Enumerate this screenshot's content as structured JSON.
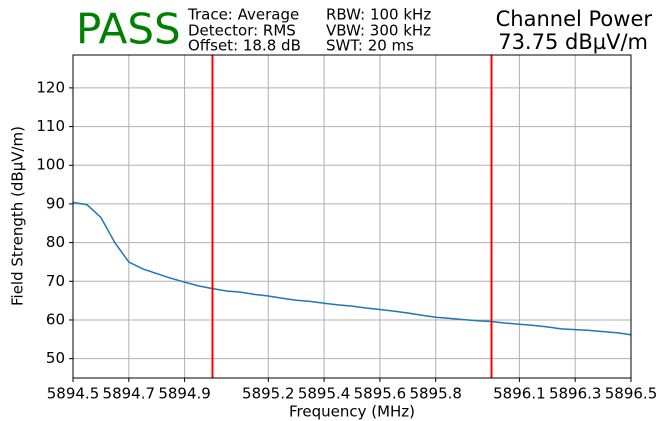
{
  "chart_data": {
    "type": "line",
    "status": "PASS",
    "info": [
      [
        "Trace: Average",
        "Detector: RMS",
        "Offset: 18.8 dB"
      ],
      [
        "RBW: 100 kHz",
        "VBW: 300 kHz",
        "SWT: 20 ms"
      ]
    ],
    "result_title": "Channel Power",
    "result_value": "73.75 dBµV/m",
    "x_label": "Frequency (MHz)",
    "y_label": "Field Strength (dBµV/m)",
    "x": [
      5894.5,
      5894.55,
      5894.6,
      5894.65,
      5894.7,
      5894.75,
      5894.8,
      5894.85,
      5894.9,
      5894.95,
      5895.0,
      5895.05,
      5895.1,
      5895.15,
      5895.2,
      5895.25,
      5895.3,
      5895.35,
      5895.4,
      5895.45,
      5895.5,
      5895.55,
      5895.6,
      5895.65,
      5895.7,
      5895.75,
      5895.8,
      5895.85,
      5895.9,
      5895.95,
      5896.0,
      5896.05,
      5896.1,
      5896.15,
      5896.2,
      5896.25,
      5896.3,
      5896.35,
      5896.4,
      5896.45,
      5896.5
    ],
    "series": [
      {
        "color": "#1f77b4",
        "values": [
          90.4,
          89.8,
          86.5,
          80,
          75,
          73.2,
          72,
          70.8,
          69.8,
          68.8,
          68.1,
          67.5,
          67.2,
          66.6,
          66.2,
          65.6,
          65.1,
          64.8,
          64.3,
          63.9,
          63.6,
          63.1,
          62.7,
          62.3,
          61.8,
          61.2,
          60.7,
          60.4,
          60.1,
          59.8,
          59.6,
          59.2,
          58.9,
          58.6,
          58.2,
          57.7,
          57.5,
          57.3,
          57.0,
          56.7,
          56.2
        ]
      }
    ],
    "markers": [
      5895.0,
      5896.0
    ],
    "marker_color": "#ff0000",
    "xlim": [
      5894.5,
      5896.5
    ],
    "xticks": [
      5894.5,
      5894.7,
      5894.9,
      5895.2,
      5895.4,
      5895.6,
      5895.8,
      5896.1,
      5896.3,
      5896.5
    ],
    "ylim": [
      45,
      128.5
    ],
    "yticks": [
      50,
      60,
      70,
      80,
      90,
      100,
      110,
      120
    ],
    "grid": true
  }
}
